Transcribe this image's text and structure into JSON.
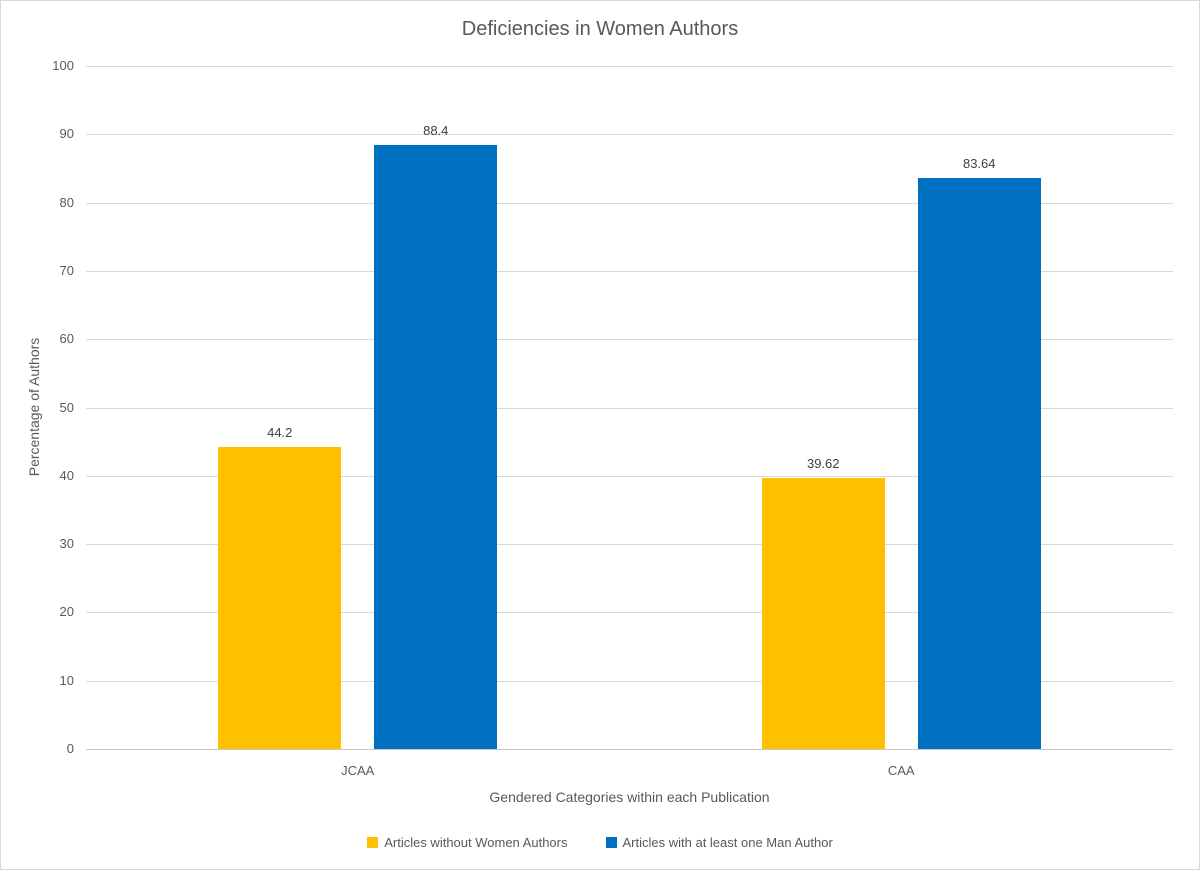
{
  "chart_data": {
    "type": "bar",
    "title": "Deficiencies in Women Authors",
    "categories": [
      "JCAA",
      "CAA"
    ],
    "series": [
      {
        "name": "Articles without Women Authors",
        "color": "#FFC000",
        "values": [
          44.2,
          39.62
        ]
      },
      {
        "name": "Articles with at least one Man Author",
        "color": "#0070C0",
        "values": [
          88.4,
          83.64
        ]
      }
    ],
    "data_labels": [
      "44.2",
      "88.4",
      "39.62",
      "83.64"
    ],
    "xlabel": "Gendered Categories within each Publication",
    "ylabel": "Percentage of Authors",
    "ylim": [
      0,
      100
    ],
    "ytick_step": 10,
    "yticks": [
      "0",
      "10",
      "20",
      "30",
      "40",
      "50",
      "60",
      "70",
      "80",
      "90",
      "100"
    ],
    "grid": true,
    "legend_position": "bottom",
    "colors": {
      "title_text": "#595959",
      "axis_text": "#595959",
      "data_label_text": "#404040",
      "gridline": "#d9d9d9",
      "axis_line": "#c6c6c6",
      "series1": "#FFC000",
      "series2": "#0070C0"
    }
  }
}
